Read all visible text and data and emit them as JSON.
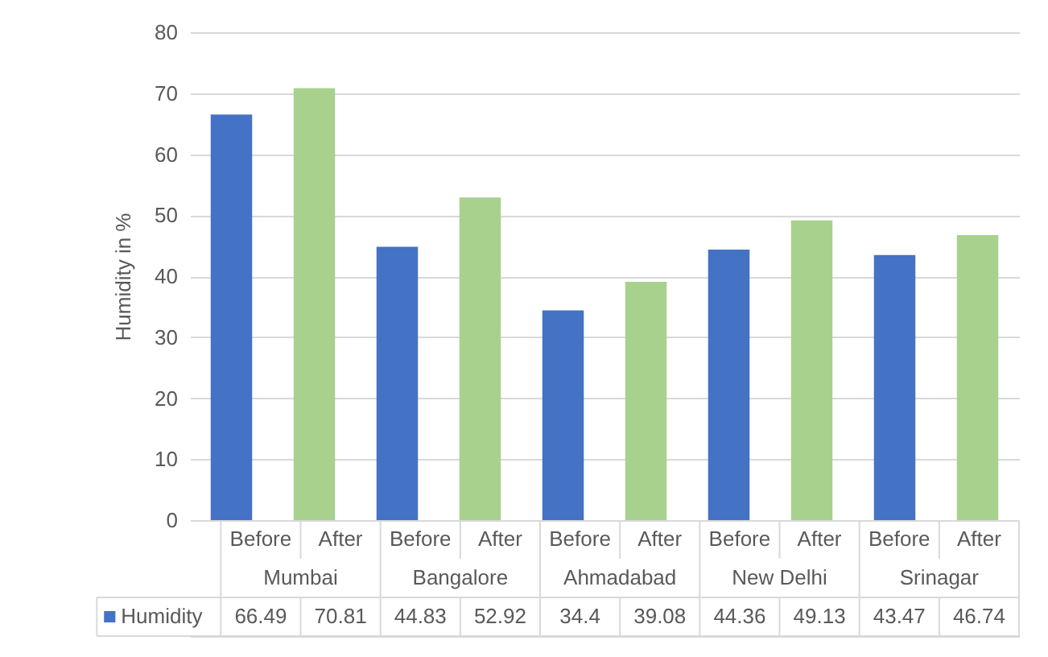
{
  "chart_data": {
    "type": "bar",
    "ylabel": "Humidity in %",
    "categories": [
      "Before",
      "After",
      "Before",
      "After",
      "Before",
      "After",
      "Before",
      "After",
      "Before",
      "After"
    ],
    "series": [
      {
        "name": "Humidity",
        "colors": [
          "#4472c4",
          "#a9d18e",
          "#4472c4",
          "#a9d18e",
          "#4472c4",
          "#a9d18e",
          "#4472c4",
          "#a9d18e",
          "#4472c4",
          "#a9d18e"
        ],
        "values": [
          66.49,
          70.81,
          44.83,
          52.92,
          34.4,
          39.08,
          44.36,
          49.13,
          43.47,
          46.74
        ]
      }
    ],
    "annotations": [
      "Mumbai",
      "Bangalore",
      "Ahmadabad",
      "New Delhi",
      "Srinagar"
    ],
    "ylim": [
      0,
      80
    ],
    "yticks": [
      0,
      10,
      20,
      30,
      40,
      50,
      60,
      70,
      80
    ],
    "grid": "y",
    "legend": "bottom",
    "data_labels": true
  }
}
